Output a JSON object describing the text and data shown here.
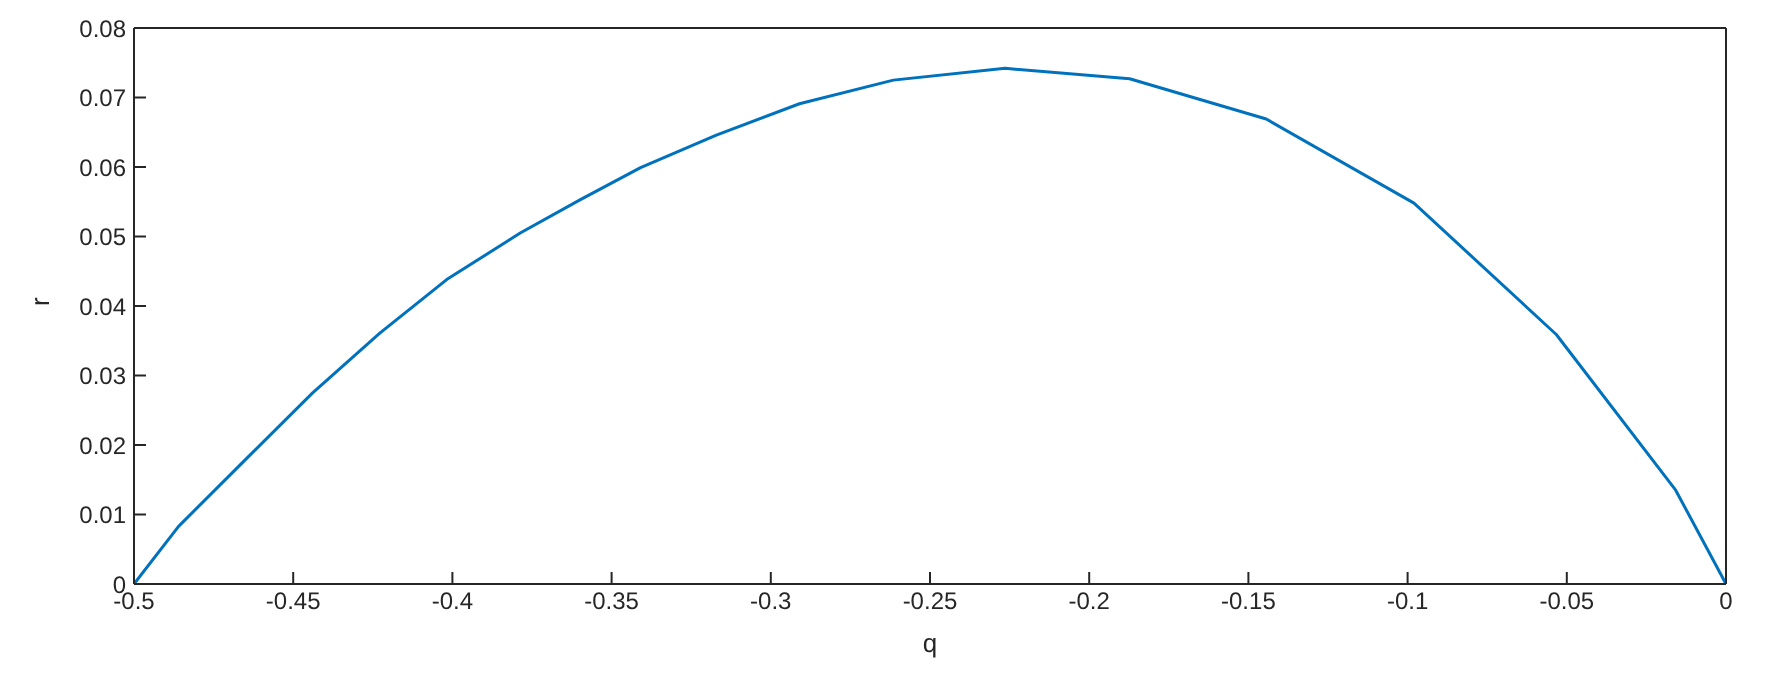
{
  "chart_data": {
    "type": "line",
    "xlabel": "q",
    "ylabel": "r",
    "x": [
      -0.5,
      -0.486,
      -0.465,
      -0.4439,
      -0.4228,
      -0.4018,
      -0.3787,
      -0.3598,
      -0.3409,
      -0.3171,
      -0.291,
      -0.2615,
      -0.2264,
      -0.1873,
      -0.1444,
      -0.098,
      -0.0533,
      -0.0158,
      0
    ],
    "series": [
      {
        "color": "#0072bd",
        "values": [
          0,
          0.0083,
          0.0179,
          0.0275,
          0.0361,
          0.0438,
          0.0505,
          0.0553,
          0.0599,
          0.0646,
          0.0691,
          0.0725,
          0.0742,
          0.0727,
          0.0669,
          0.0548,
          0.0359,
          0.0135,
          0
        ]
      }
    ],
    "xlim": [
      -0.5,
      0
    ],
    "xticks": [
      -0.5,
      -0.45,
      -0.4,
      -0.35,
      -0.3,
      -0.25,
      -0.2,
      -0.15,
      -0.1,
      -0.05,
      0
    ],
    "ylim": [
      0,
      0.08
    ],
    "yticks": [
      0,
      0.01,
      0.02,
      0.03,
      0.04,
      0.05,
      0.06,
      0.07,
      0.08
    ],
    "grid": false,
    "legend": false,
    "marker": "none",
    "line_style": "solid"
  }
}
